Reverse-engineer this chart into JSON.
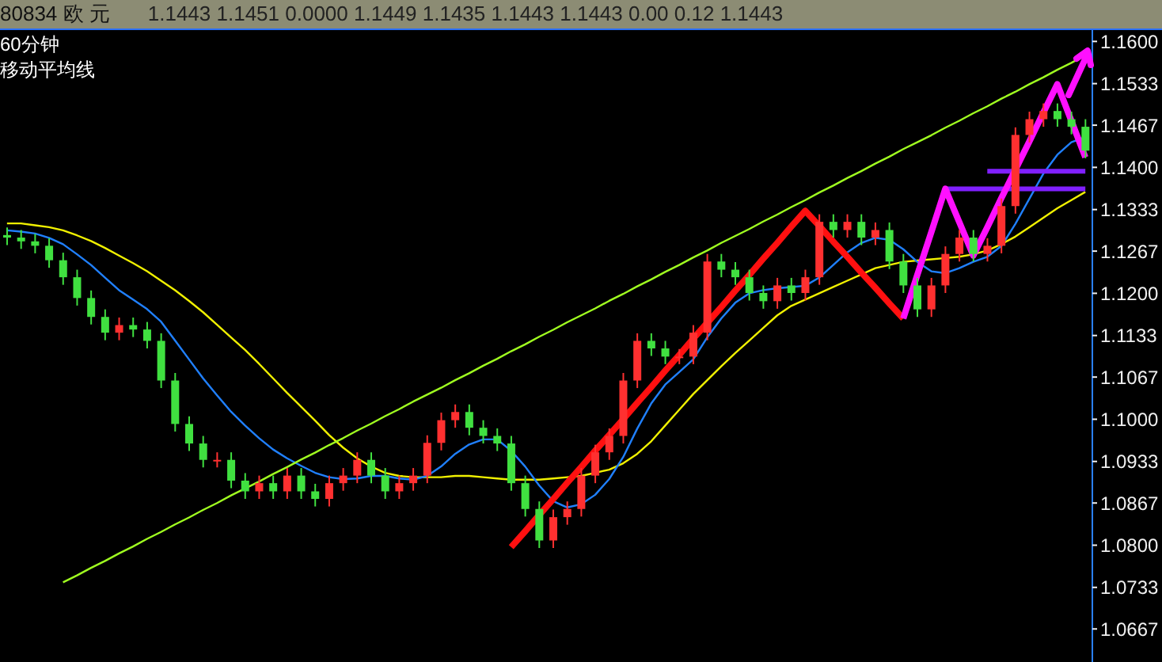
{
  "chart_data": {
    "type": "candlestick",
    "title": "80834 欧 元",
    "subtitle": "1.1443 1.1451 0.0000 1.1449 1.1435 1.1443 1.1443 0.00 0.12 1.1443",
    "annotations": [
      "60分钟",
      "移动平均线"
    ],
    "categories": [
      null,
      null,
      null,
      null,
      null,
      null,
      null,
      null,
      null,
      null,
      null,
      null,
      null,
      null,
      null,
      null,
      null,
      null,
      null,
      null,
      null,
      null,
      null,
      null,
      null,
      null,
      null,
      null,
      null,
      null,
      null,
      null,
      null,
      null,
      null,
      null,
      null,
      null,
      null,
      null,
      null,
      null,
      null,
      null,
      null,
      null,
      null,
      null,
      null,
      null,
      null,
      null,
      null,
      null,
      null,
      null,
      null,
      null,
      null,
      null,
      null,
      null,
      null,
      null,
      null,
      null,
      null,
      null,
      null,
      null,
      null,
      null,
      null,
      null,
      null,
      null,
      null,
      null
    ],
    "ohlc": [
      [
        1.129,
        1.1302,
        1.1274,
        1.1286
      ],
      [
        1.1286,
        1.1298,
        1.1268,
        1.128
      ],
      [
        1.128,
        1.1292,
        1.1261,
        1.1273
      ],
      [
        1.1273,
        1.1285,
        1.1238,
        1.125
      ],
      [
        1.125,
        1.1262,
        1.1211,
        1.1223
      ],
      [
        1.1223,
        1.1235,
        1.1178,
        1.119
      ],
      [
        1.119,
        1.1202,
        1.1148,
        1.116
      ],
      [
        1.116,
        1.1172,
        1.1123,
        1.1135
      ],
      [
        1.1135,
        1.1159,
        1.1123,
        1.1147
      ],
      [
        1.1147,
        1.1159,
        1.1128,
        1.114
      ],
      [
        1.114,
        1.1152,
        1.111,
        1.1122
      ],
      [
        1.1122,
        1.1134,
        1.1047,
        1.1059
      ],
      [
        1.1059,
        1.1071,
        1.0978,
        1.099
      ],
      [
        1.099,
        1.1002,
        1.0947,
        1.0959
      ],
      [
        1.0959,
        1.0971,
        1.0921,
        1.0933
      ],
      [
        1.0933,
        1.0945,
        1.0921,
        1.0933
      ],
      [
        1.0933,
        1.0945,
        1.0888,
        1.09
      ],
      [
        1.09,
        1.0912,
        1.0871,
        1.0883
      ],
      [
        1.0883,
        1.0908,
        1.0871,
        1.0896
      ],
      [
        1.0896,
        1.0908,
        1.0871,
        1.0883
      ],
      [
        1.0883,
        1.092,
        1.0871,
        1.0908
      ],
      [
        1.0908,
        1.092,
        1.0871,
        1.0883
      ],
      [
        1.0883,
        1.0895,
        1.0859,
        1.0871
      ],
      [
        1.0871,
        1.0908,
        1.0859,
        1.0896
      ],
      [
        1.0896,
        1.092,
        1.0884,
        1.0908
      ],
      [
        1.0908,
        1.0945,
        1.0896,
        1.0933
      ],
      [
        1.0933,
        1.0945,
        1.0896,
        1.0908
      ],
      [
        1.0908,
        1.092,
        1.0871,
        1.0883
      ],
      [
        1.0883,
        1.0908,
        1.0871,
        1.0896
      ],
      [
        1.0896,
        1.092,
        1.0884,
        1.0908
      ],
      [
        1.0908,
        1.0972,
        1.0896,
        1.096
      ],
      [
        1.096,
        1.1008,
        1.0948,
        1.0996
      ],
      [
        1.0996,
        1.1021,
        1.0984,
        1.1009
      ],
      [
        1.1009,
        1.1021,
        1.0972,
        1.0984
      ],
      [
        1.0984,
        1.0996,
        1.0959,
        1.0971
      ],
      [
        1.0971,
        1.0983,
        1.0947,
        1.0959
      ],
      [
        1.0959,
        1.0971,
        1.0884,
        1.0896
      ],
      [
        1.0896,
        1.0908,
        1.0843,
        1.0855
      ],
      [
        1.0855,
        1.0867,
        1.0793,
        1.0805
      ],
      [
        1.0805,
        1.0854,
        1.0793,
        1.0842
      ],
      [
        1.0842,
        1.0867,
        1.083,
        1.0855
      ],
      [
        1.0855,
        1.092,
        1.0843,
        1.0908
      ],
      [
        1.0908,
        1.0957,
        1.0896,
        1.0945
      ],
      [
        1.0945,
        1.0983,
        1.0933,
        1.0971
      ],
      [
        1.0971,
        1.1071,
        1.0959,
        1.1059
      ],
      [
        1.1059,
        1.1134,
        1.1047,
        1.1122
      ],
      [
        1.1122,
        1.1134,
        1.1098,
        1.111
      ],
      [
        1.111,
        1.1122,
        1.1085,
        1.1097
      ],
      [
        1.1097,
        1.1109,
        1.1085,
        1.1097
      ],
      [
        1.1097,
        1.1147,
        1.1085,
        1.1135
      ],
      [
        1.1135,
        1.126,
        1.1123,
        1.1248
      ],
      [
        1.1248,
        1.126,
        1.1223,
        1.1235
      ],
      [
        1.1235,
        1.1247,
        1.1211,
        1.1223
      ],
      [
        1.1223,
        1.1235,
        1.1186,
        1.1198
      ],
      [
        1.1198,
        1.121,
        1.1173,
        1.1185
      ],
      [
        1.1185,
        1.1222,
        1.1173,
        1.121
      ],
      [
        1.121,
        1.1222,
        1.1186,
        1.1198
      ],
      [
        1.1198,
        1.1235,
        1.1186,
        1.1223
      ],
      [
        1.1223,
        1.1323,
        1.1211,
        1.1311
      ],
      [
        1.1311,
        1.1323,
        1.1286,
        1.1298
      ],
      [
        1.1298,
        1.1323,
        1.1286,
        1.1311
      ],
      [
        1.1311,
        1.1323,
        1.1274,
        1.1286
      ],
      [
        1.1286,
        1.131,
        1.1274,
        1.1298
      ],
      [
        1.1298,
        1.131,
        1.1236,
        1.1248
      ],
      [
        1.1248,
        1.126,
        1.1198,
        1.121
      ],
      [
        1.121,
        1.1222,
        1.116,
        1.1172
      ],
      [
        1.1172,
        1.1222,
        1.116,
        1.121
      ],
      [
        1.121,
        1.1272,
        1.1198,
        1.126
      ],
      [
        1.126,
        1.1298,
        1.1248,
        1.1286
      ],
      [
        1.1286,
        1.1298,
        1.1248,
        1.126
      ],
      [
        1.126,
        1.1285,
        1.1248,
        1.1273
      ],
      [
        1.1273,
        1.1348,
        1.1261,
        1.1336
      ],
      [
        1.1336,
        1.1461,
        1.1324,
        1.1449
      ],
      [
        1.1449,
        1.1486,
        1.1437,
        1.1474
      ],
      [
        1.1474,
        1.1499,
        1.1462,
        1.1487
      ],
      [
        1.1487,
        1.1499,
        1.1462,
        1.1474
      ],
      [
        1.1474,
        1.1486,
        1.145,
        1.1462
      ],
      [
        1.1462,
        1.1474,
        1.1412,
        1.1424
      ]
    ],
    "series": [
      {
        "type": "line",
        "color": "#f0f000",
        "values": [
          1.1311,
          1.1311,
          1.1308,
          1.1305,
          1.13,
          1.1292,
          1.1283,
          1.1272,
          1.126,
          1.1248,
          1.1235,
          1.122,
          1.1205,
          1.1188,
          1.117,
          1.115,
          1.113,
          1.111,
          1.1088,
          1.1065,
          1.1042,
          1.102,
          1.0998,
          1.0975,
          1.0955,
          1.0938,
          1.0925,
          1.0915,
          1.091,
          1.0908,
          1.0908,
          1.0908,
          1.091,
          1.091,
          1.0908,
          1.0906,
          1.0904,
          1.0904,
          1.0904,
          1.0906,
          1.0908,
          1.091,
          1.0915,
          1.092,
          1.093,
          1.0945,
          1.0965,
          1.099,
          1.1015,
          1.104,
          1.1062,
          1.1084,
          1.1105,
          1.1125,
          1.1145,
          1.1165,
          1.118,
          1.119,
          1.12,
          1.121,
          1.122,
          1.123,
          1.124,
          1.1245,
          1.125,
          1.1252,
          1.1254,
          1.1256,
          1.1258,
          1.1262,
          1.1268,
          1.1278,
          1.129,
          1.1305,
          1.132,
          1.1335,
          1.1348,
          1.1361
        ]
      },
      {
        "type": "line",
        "color": "#2080ff",
        "values": [
          1.13,
          1.1298,
          1.1295,
          1.1288,
          1.1278,
          1.1262,
          1.1245,
          1.1225,
          1.1205,
          1.119,
          1.1175,
          1.1155,
          1.1125,
          1.1095,
          1.1065,
          1.1038,
          1.1012,
          1.099,
          1.097,
          1.0952,
          1.0938,
          1.0926,
          1.0915,
          1.0908,
          1.0905,
          1.0906,
          1.091,
          1.091,
          1.0906,
          1.0904,
          1.091,
          1.0925,
          1.0945,
          1.096,
          1.0968,
          1.0968,
          1.095,
          1.0925,
          1.0895,
          1.087,
          1.086,
          1.0865,
          1.088,
          1.0905,
          1.094,
          1.0985,
          1.1025,
          1.1055,
          1.1075,
          1.1095,
          1.113,
          1.116,
          1.1185,
          1.12,
          1.1205,
          1.1208,
          1.121,
          1.1212,
          1.1225,
          1.1245,
          1.1265,
          1.128,
          1.1288,
          1.1285,
          1.127,
          1.125,
          1.1235,
          1.1232,
          1.124,
          1.125,
          1.1258,
          1.1275,
          1.131,
          1.135,
          1.139,
          1.142,
          1.144,
          1.1448
        ]
      },
      {
        "type": "line",
        "color": "#a0ff20",
        "values": [
          null,
          null,
          null,
          null,
          1.0741,
          1.0752,
          1.0764,
          1.0775,
          1.0787,
          1.0798,
          1.081,
          1.0821,
          1.0833,
          1.0844,
          1.0856,
          1.0867,
          1.0879,
          1.089,
          1.0901,
          1.0913,
          1.0924,
          1.0936,
          1.0947,
          1.0959,
          1.097,
          1.0982,
          1.0993,
          1.1005,
          1.1016,
          1.1028,
          1.1039,
          1.105,
          1.1062,
          1.1073,
          1.1085,
          1.1096,
          1.1108,
          1.1119,
          1.1131,
          1.1142,
          1.1154,
          1.1165,
          1.1176,
          1.1188,
          1.1199,
          1.1211,
          1.1222,
          1.1234,
          1.1245,
          1.1257,
          1.1268,
          1.128,
          1.1291,
          1.1302,
          1.1314,
          1.1325,
          1.1337,
          1.1348,
          1.136,
          1.1371,
          1.1383,
          1.1394,
          1.1406,
          1.1417,
          1.1429,
          1.144,
          1.1451,
          1.1463,
          1.1474,
          1.1486,
          1.1497,
          1.1509,
          1.152,
          1.1532,
          1.1543,
          1.1555,
          1.1566,
          1.1578
        ]
      },
      {
        "type": "line",
        "color": "#8020ff",
        "values": [
          null,
          null,
          null,
          null,
          null,
          null,
          null,
          null,
          null,
          null,
          null,
          null,
          null,
          null,
          null,
          null,
          null,
          null,
          null,
          null,
          null,
          null,
          null,
          null,
          null,
          null,
          null,
          null,
          null,
          null,
          null,
          null,
          null,
          null,
          null,
          null,
          null,
          null,
          null,
          null,
          null,
          null,
          null,
          null,
          null,
          null,
          null,
          null,
          null,
          null,
          null,
          null,
          null,
          null,
          null,
          null,
          null,
          null,
          null,
          null,
          null,
          null,
          null,
          null,
          null,
          null,
          null,
          1.1366,
          1.1366,
          1.1366,
          1.1366,
          1.1366,
          1.1366,
          1.1366,
          1.1366,
          1.1366,
          1.1366,
          1.1366
        ]
      },
      {
        "type": "line",
        "color": "#8020ff",
        "values": [
          null,
          null,
          null,
          null,
          null,
          null,
          null,
          null,
          null,
          null,
          null,
          null,
          null,
          null,
          null,
          null,
          null,
          null,
          null,
          null,
          null,
          null,
          null,
          null,
          null,
          null,
          null,
          null,
          null,
          null,
          null,
          null,
          null,
          null,
          null,
          null,
          null,
          null,
          null,
          null,
          null,
          null,
          null,
          null,
          null,
          null,
          null,
          null,
          null,
          null,
          null,
          null,
          null,
          null,
          null,
          null,
          null,
          null,
          null,
          null,
          null,
          null,
          null,
          null,
          null,
          null,
          null,
          null,
          null,
          null,
          1.1394,
          1.1394,
          1.1394,
          1.1394,
          1.1394,
          1.1394,
          1.1394,
          1.1394
        ]
      },
      {
        "type": "line",
        "color": "#ff1010",
        "values": [
          null,
          null,
          null,
          null,
          null,
          null,
          null,
          null,
          null,
          null,
          null,
          null,
          null,
          null,
          null,
          null,
          null,
          null,
          null,
          null,
          null,
          null,
          null,
          null,
          null,
          null,
          null,
          null,
          null,
          null,
          null,
          null,
          null,
          null,
          null,
          null,
          1.0797,
          1.0822,
          1.0848,
          1.0873,
          1.0899,
          1.0924,
          1.095,
          1.0975,
          1.1,
          1.1026,
          1.1051,
          1.1077,
          1.1102,
          1.1128,
          1.1153,
          1.1178,
          1.1204,
          1.1229,
          1.1255,
          1.128,
          1.1306,
          1.1331,
          1.1307,
          1.1282,
          1.1258,
          1.1233,
          1.1209,
          1.1184,
          1.116,
          null,
          null,
          null,
          null,
          null,
          null,
          null,
          null,
          null,
          null,
          null,
          null,
          null
        ]
      },
      {
        "type": "line",
        "color": "#ff10ff",
        "values": [
          null,
          null,
          null,
          null,
          null,
          null,
          null,
          null,
          null,
          null,
          null,
          null,
          null,
          null,
          null,
          null,
          null,
          null,
          null,
          null,
          null,
          null,
          null,
          null,
          null,
          null,
          null,
          null,
          null,
          null,
          null,
          null,
          null,
          null,
          null,
          null,
          null,
          null,
          null,
          null,
          null,
          null,
          null,
          null,
          null,
          null,
          null,
          null,
          null,
          null,
          null,
          null,
          null,
          null,
          null,
          null,
          null,
          null,
          null,
          null,
          null,
          null,
          null,
          null,
          1.116,
          1.1229,
          1.1297,
          1.1366,
          1.1313,
          1.126,
          1.1305,
          1.1351,
          1.1396,
          1.1441,
          1.1487,
          1.1532,
          1.1474,
          1.1416
        ]
      }
    ],
    "ylim": [
      1.0612,
      1.1618
    ],
    "yticks": [
      {
        "value": 1.0667,
        "label": "1.0667"
      },
      {
        "value": 1.0733,
        "label": "1.0733"
      },
      {
        "value": 1.08,
        "label": "1.0800"
      },
      {
        "value": 1.0867,
        "label": "1.0867"
      },
      {
        "value": 1.0933,
        "label": "1.0933"
      },
      {
        "value": 1.1,
        "label": "1.1000"
      },
      {
        "value": 1.1067,
        "label": "1.1067"
      },
      {
        "value": 1.1133,
        "label": "1.1133"
      },
      {
        "value": 1.12,
        "label": "1.1200"
      },
      {
        "value": 1.1267,
        "label": "1.1267"
      },
      {
        "value": 1.1333,
        "label": "1.1333"
      },
      {
        "value": 1.14,
        "label": "1.1400"
      },
      {
        "value": 1.1467,
        "label": "1.1467"
      },
      {
        "value": 1.1533,
        "label": "1.1533"
      },
      {
        "value": 1.16,
        "label": "1.1600"
      }
    ],
    "tick_labels": "y"
  }
}
